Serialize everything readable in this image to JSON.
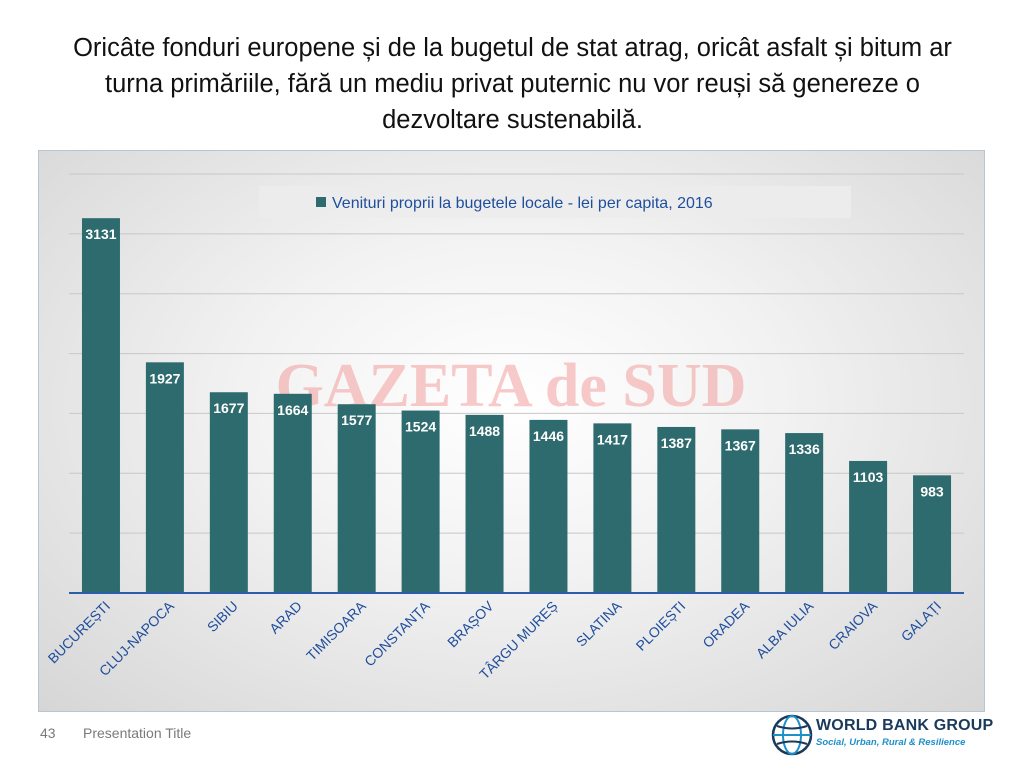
{
  "slide": {
    "title": "Oricâte fonduri europene și de la bugetul de stat atrag, oricât asfalt și bitum ar turna primăriile, fără un mediu privat puternic nu vor reuși să genereze o dezvoltare sustenabilă.",
    "page_number": "43",
    "footer_title": "Presentation Title",
    "watermark": "GAZETA de SUD",
    "logo": {
      "name": "WORLD BANK GROUP",
      "subtitle": "Social, Urban, Rural & Resilience",
      "icon": "globe-icon"
    }
  },
  "colors": {
    "bar": "#2e6b6e",
    "axis": "#2b5ea8",
    "label_text": "#1f4e9e",
    "watermark": "#f08a8a"
  },
  "chart_data": {
    "type": "bar",
    "title": "",
    "xlabel": "",
    "ylabel": "",
    "ylim": [
      0,
      3500
    ],
    "grid": true,
    "legend_position": "top",
    "categories": [
      "BUCUREȘTI",
      "CLUJ-NAPOCA",
      "SIBIU",
      "ARAD",
      "TIMISOARA",
      "CONSTANȚA",
      "BRAȘOV",
      "TÂRGU MUREȘ",
      "SLATINA",
      "PLOIEȘTI",
      "ORADEA",
      "ALBA IULIA",
      "CRAIOVA",
      "GALAȚI"
    ],
    "series": [
      {
        "name": "Venituri proprii la bugetele locale - lei per capita, 2016",
        "values": [
          3131,
          1927,
          1677,
          1664,
          1577,
          1524,
          1488,
          1446,
          1417,
          1387,
          1367,
          1336,
          1103,
          983
        ]
      }
    ]
  }
}
